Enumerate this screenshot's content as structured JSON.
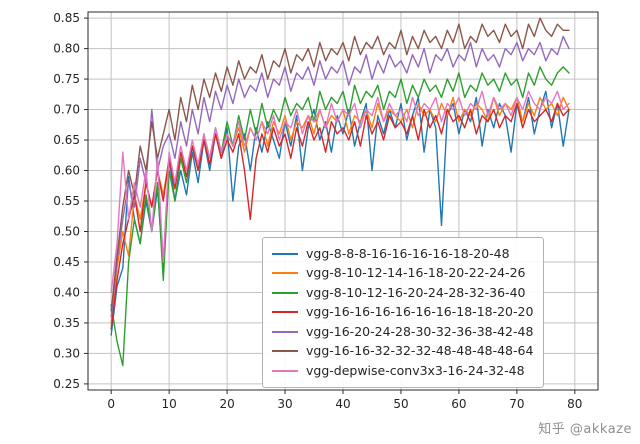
{
  "watermark": "知乎 @akkaze",
  "chart_data": {
    "type": "line",
    "title": "",
    "xlabel": "",
    "ylabel": "",
    "grid": true,
    "grid_color": "#c3c3c3",
    "legend_position": "inside lower-right",
    "xlim": [
      -4,
      84
    ],
    "ylim": [
      0.24,
      0.86
    ],
    "xticks": [
      0,
      10,
      20,
      30,
      40,
      50,
      60,
      70,
      80
    ],
    "yticks": [
      0.25,
      0.3,
      0.35,
      0.4,
      0.45,
      0.5,
      0.55,
      0.6,
      0.65,
      0.7,
      0.75,
      0.8,
      0.85
    ],
    "x_start": 0,
    "x_step": 1,
    "series": [
      {
        "name": "vgg-8-8-8-16-16-16-16-18-20-48",
        "color": "#1f77b4",
        "values": [
          0.33,
          0.41,
          0.44,
          0.59,
          0.52,
          0.48,
          0.55,
          0.5,
          0.57,
          0.44,
          0.62,
          0.55,
          0.6,
          0.56,
          0.63,
          0.58,
          0.65,
          0.6,
          0.66,
          0.62,
          0.67,
          0.55,
          0.64,
          0.66,
          0.6,
          0.67,
          0.63,
          0.68,
          0.65,
          0.62,
          0.68,
          0.64,
          0.69,
          0.6,
          0.67,
          0.7,
          0.65,
          0.68,
          0.63,
          0.69,
          0.66,
          0.7,
          0.64,
          0.68,
          0.71,
          0.6,
          0.69,
          0.66,
          0.7,
          0.67,
          0.71,
          0.65,
          0.69,
          0.72,
          0.63,
          0.7,
          0.67,
          0.51,
          0.69,
          0.71,
          0.66,
          0.7,
          0.68,
          0.72,
          0.64,
          0.7,
          0.67,
          0.71,
          0.69,
          0.63,
          0.71,
          0.68,
          0.72,
          0.66,
          0.7,
          0.73,
          0.67,
          0.71,
          0.64,
          0.7
        ]
      },
      {
        "name": "vgg-8-10-12-14-16-18-20-22-24-26",
        "color": "#ff7f0e",
        "values": [
          0.35,
          0.44,
          0.5,
          0.46,
          0.56,
          0.52,
          0.58,
          0.54,
          0.6,
          0.56,
          0.62,
          0.58,
          0.63,
          0.6,
          0.64,
          0.61,
          0.65,
          0.62,
          0.66,
          0.63,
          0.66,
          0.64,
          0.67,
          0.63,
          0.67,
          0.65,
          0.68,
          0.64,
          0.68,
          0.66,
          0.69,
          0.65,
          0.68,
          0.67,
          0.69,
          0.66,
          0.7,
          0.67,
          0.69,
          0.68,
          0.7,
          0.66,
          0.69,
          0.68,
          0.7,
          0.67,
          0.71,
          0.68,
          0.7,
          0.69,
          0.68,
          0.7,
          0.67,
          0.71,
          0.69,
          0.7,
          0.68,
          0.71,
          0.69,
          0.72,
          0.68,
          0.7,
          0.69,
          0.71,
          0.7,
          0.68,
          0.72,
          0.69,
          0.71,
          0.7,
          0.72,
          0.68,
          0.71,
          0.69,
          0.72,
          0.7,
          0.71,
          0.69,
          0.72,
          0.7
        ]
      },
      {
        "name": "vgg-8-10-12-16-20-24-28-32-36-40",
        "color": "#2ca02c",
        "values": [
          0.38,
          0.32,
          0.28,
          0.45,
          0.52,
          0.48,
          0.56,
          0.5,
          0.58,
          0.42,
          0.6,
          0.55,
          0.62,
          0.58,
          0.64,
          0.6,
          0.66,
          0.62,
          0.67,
          0.63,
          0.68,
          0.64,
          0.69,
          0.65,
          0.7,
          0.66,
          0.71,
          0.67,
          0.7,
          0.68,
          0.72,
          0.69,
          0.71,
          0.7,
          0.72,
          0.68,
          0.73,
          0.7,
          0.72,
          0.71,
          0.73,
          0.69,
          0.74,
          0.71,
          0.73,
          0.72,
          0.74,
          0.7,
          0.73,
          0.72,
          0.75,
          0.71,
          0.74,
          0.72,
          0.75,
          0.73,
          0.74,
          0.72,
          0.75,
          0.73,
          0.76,
          0.72,
          0.74,
          0.73,
          0.76,
          0.74,
          0.75,
          0.73,
          0.76,
          0.74,
          0.75,
          0.72,
          0.76,
          0.74,
          0.77,
          0.75,
          0.74,
          0.76,
          0.77,
          0.76
        ]
      },
      {
        "name": "vgg-16-16-16-16-16-16-18-18-20-20",
        "color": "#d62728",
        "values": [
          0.34,
          0.42,
          0.48,
          0.52,
          0.56,
          0.5,
          0.58,
          0.54,
          0.6,
          0.55,
          0.62,
          0.57,
          0.63,
          0.59,
          0.64,
          0.6,
          0.65,
          0.61,
          0.66,
          0.62,
          0.65,
          0.63,
          0.66,
          0.6,
          0.52,
          0.62,
          0.66,
          0.63,
          0.67,
          0.64,
          0.66,
          0.62,
          0.67,
          0.64,
          0.68,
          0.65,
          0.67,
          0.63,
          0.68,
          0.66,
          0.67,
          0.65,
          0.68,
          0.64,
          0.69,
          0.66,
          0.68,
          0.65,
          0.69,
          0.67,
          0.68,
          0.66,
          0.69,
          0.65,
          0.7,
          0.67,
          0.69,
          0.66,
          0.7,
          0.68,
          0.69,
          0.67,
          0.7,
          0.66,
          0.69,
          0.68,
          0.7,
          0.67,
          0.69,
          0.68,
          0.71,
          0.67,
          0.7,
          0.68,
          0.69,
          0.7,
          0.68,
          0.71,
          0.69,
          0.7
        ]
      },
      {
        "name": "vgg-16-20-24-28-30-32-36-38-42-48",
        "color": "#9467bd",
        "values": [
          0.36,
          0.45,
          0.52,
          0.58,
          0.54,
          0.62,
          0.58,
          0.7,
          0.6,
          0.64,
          0.66,
          0.62,
          0.68,
          0.64,
          0.7,
          0.66,
          0.72,
          0.68,
          0.73,
          0.7,
          0.74,
          0.71,
          0.75,
          0.72,
          0.74,
          0.73,
          0.76,
          0.72,
          0.75,
          0.74,
          0.77,
          0.73,
          0.76,
          0.75,
          0.77,
          0.74,
          0.78,
          0.75,
          0.77,
          0.76,
          0.78,
          0.74,
          0.77,
          0.76,
          0.79,
          0.75,
          0.78,
          0.76,
          0.79,
          0.77,
          0.78,
          0.76,
          0.79,
          0.77,
          0.8,
          0.76,
          0.79,
          0.78,
          0.8,
          0.77,
          0.79,
          0.78,
          0.81,
          0.77,
          0.8,
          0.78,
          0.79,
          0.77,
          0.8,
          0.79,
          0.81,
          0.78,
          0.8,
          0.79,
          0.81,
          0.78,
          0.8,
          0.79,
          0.82,
          0.8
        ]
      },
      {
        "name": "vgg-16-16-32-32-32-48-48-48-48-64",
        "color": "#8c564b",
        "values": [
          0.37,
          0.46,
          0.54,
          0.6,
          0.56,
          0.64,
          0.6,
          0.68,
          0.62,
          0.66,
          0.7,
          0.65,
          0.72,
          0.68,
          0.74,
          0.7,
          0.75,
          0.72,
          0.76,
          0.73,
          0.77,
          0.74,
          0.78,
          0.75,
          0.77,
          0.76,
          0.79,
          0.75,
          0.78,
          0.77,
          0.8,
          0.76,
          0.79,
          0.78,
          0.8,
          0.77,
          0.81,
          0.78,
          0.8,
          0.79,
          0.81,
          0.78,
          0.82,
          0.79,
          0.81,
          0.8,
          0.82,
          0.79,
          0.81,
          0.8,
          0.83,
          0.79,
          0.82,
          0.8,
          0.83,
          0.81,
          0.82,
          0.8,
          0.83,
          0.81,
          0.84,
          0.8,
          0.82,
          0.81,
          0.84,
          0.82,
          0.83,
          0.81,
          0.84,
          0.82,
          0.83,
          0.8,
          0.84,
          0.82,
          0.85,
          0.83,
          0.82,
          0.84,
          0.83,
          0.83
        ]
      },
      {
        "name": "vgg-depwise-conv3x3-16-24-32-48",
        "color": "#e377c2",
        "values": [
          0.4,
          0.48,
          0.63,
          0.52,
          0.58,
          0.54,
          0.6,
          0.5,
          0.62,
          0.45,
          0.63,
          0.58,
          0.64,
          0.6,
          0.65,
          0.61,
          0.66,
          0.62,
          0.67,
          0.63,
          0.66,
          0.64,
          0.68,
          0.64,
          0.67,
          0.65,
          0.68,
          0.66,
          0.69,
          0.65,
          0.68,
          0.67,
          0.7,
          0.66,
          0.69,
          0.68,
          0.7,
          0.67,
          0.71,
          0.68,
          0.7,
          0.69,
          0.71,
          0.67,
          0.7,
          0.69,
          0.72,
          0.68,
          0.71,
          0.69,
          0.7,
          0.68,
          0.72,
          0.69,
          0.71,
          0.7,
          0.72,
          0.68,
          0.71,
          0.7,
          0.72,
          0.69,
          0.71,
          0.7,
          0.73,
          0.69,
          0.72,
          0.7,
          0.71,
          0.69,
          0.72,
          0.7,
          0.73,
          0.71,
          0.7,
          0.72,
          0.71,
          0.73,
          0.7,
          0.71
        ]
      }
    ]
  }
}
